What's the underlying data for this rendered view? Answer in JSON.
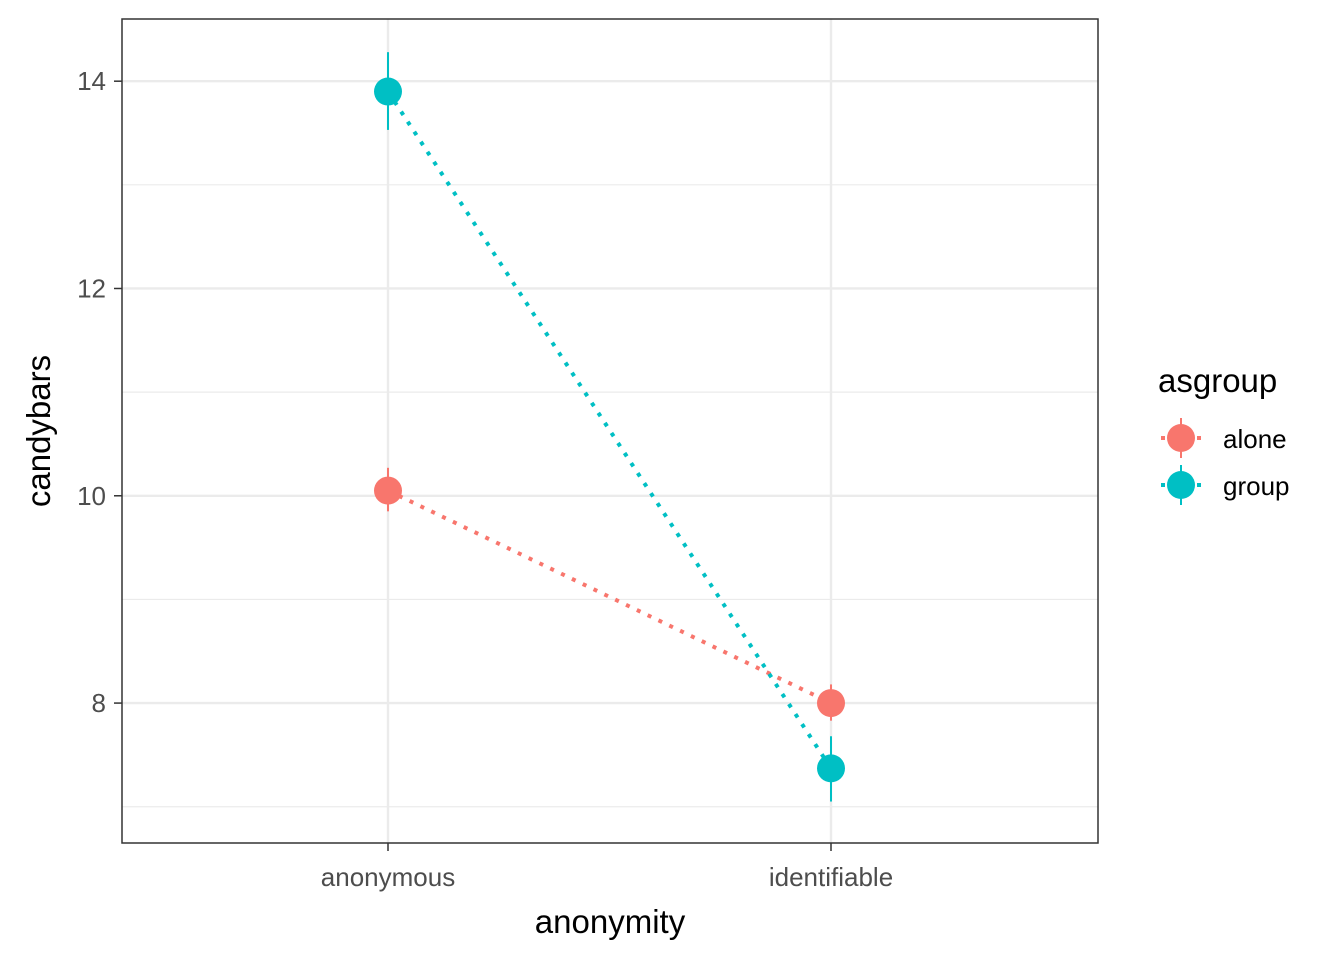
{
  "chart_data": {
    "type": "line",
    "categories": [
      "anonymous",
      "identifiable"
    ],
    "xlabel": "anonymity",
    "ylabel": "candybars",
    "ylim": [
      6.65,
      14.6
    ],
    "yticks_major": [
      8,
      10,
      12,
      14
    ],
    "yticks_minor": [
      7,
      9,
      11,
      13
    ],
    "grid": true,
    "legend": {
      "title": "asgroup",
      "position": "right"
    },
    "series": [
      {
        "name": "alone",
        "color": "#F8766D",
        "linestyle": "dotted",
        "values": [
          10.05,
          8.0
        ],
        "err_low": [
          9.85,
          7.83
        ],
        "err_high": [
          10.27,
          8.18
        ]
      },
      {
        "name": "group",
        "color": "#00BFC4",
        "linestyle": "dotted",
        "values": [
          13.9,
          7.37
        ],
        "err_low": [
          13.53,
          7.05
        ],
        "err_high": [
          14.28,
          7.68
        ]
      }
    ]
  }
}
